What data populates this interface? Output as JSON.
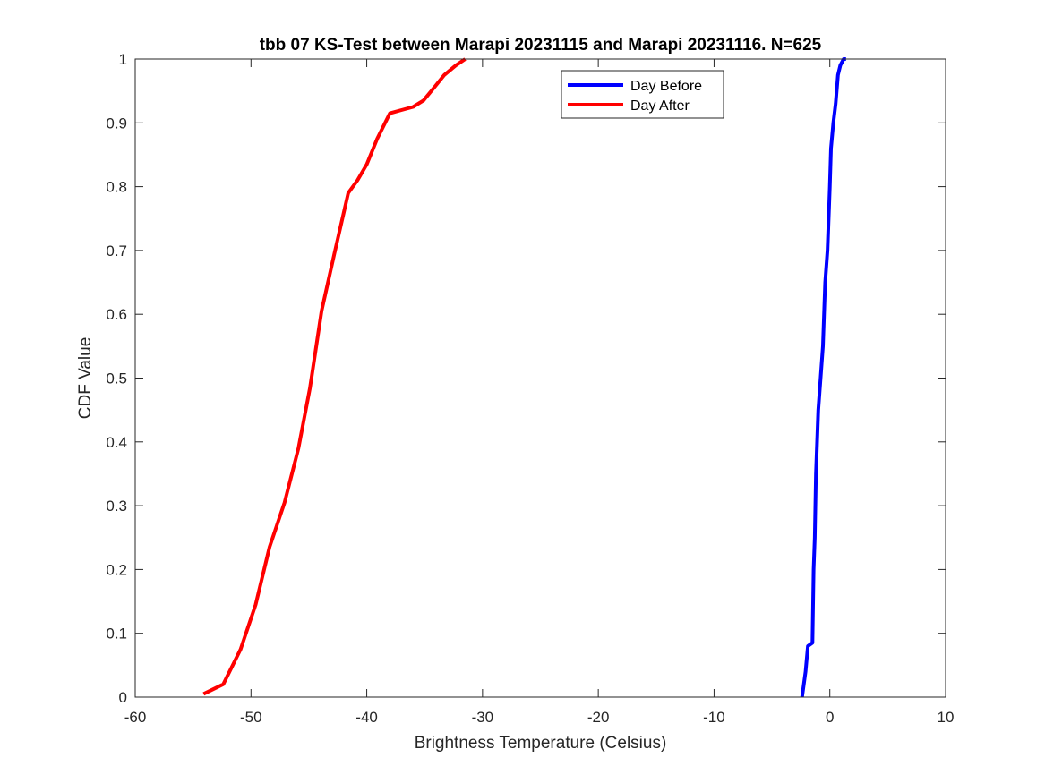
{
  "chart_data": {
    "type": "line",
    "title": "tbb 07 KS-Test between Marapi 20231115 and Marapi 20231116. N=625",
    "xlabel": "Brightness Temperature (Celsius)",
    "ylabel": "CDF Value",
    "xlim": [
      -60,
      10
    ],
    "ylim": [
      0,
      1
    ],
    "xticks": [
      -60,
      -50,
      -40,
      -30,
      -20,
      -10,
      0,
      10
    ],
    "xtick_labels": [
      "-60",
      "-50",
      "-40",
      "-30",
      "-20",
      "-10",
      "0",
      "10"
    ],
    "yticks": [
      0,
      0.1,
      0.2,
      0.3,
      0.4,
      0.5,
      0.6,
      0.7,
      0.8,
      0.9,
      1
    ],
    "ytick_labels": [
      "0",
      "0.1",
      "0.2",
      "0.3",
      "0.4",
      "0.5",
      "0.6",
      "0.7",
      "0.8",
      "0.9",
      "1"
    ],
    "grid": false,
    "legend_position": "top-center",
    "series": [
      {
        "name": "Day Before",
        "color": "#0000ff",
        "x": [
          -2.4,
          -2.1,
          -1.9,
          -1.5,
          -1.4,
          -1.3,
          -1.2,
          -1.0,
          -0.8,
          -0.6,
          -0.4,
          -0.2,
          0.0,
          0.1,
          0.3,
          0.5,
          0.7,
          0.9,
          1.2,
          1.4
        ],
        "y": [
          0.0,
          0.04,
          0.08,
          0.085,
          0.2,
          0.25,
          0.35,
          0.45,
          0.5,
          0.55,
          0.65,
          0.7,
          0.8,
          0.86,
          0.9,
          0.93,
          0.975,
          0.99,
          1.0,
          1.0
        ]
      },
      {
        "name": "Day After",
        "color": "#ff0000",
        "x": [
          -54.1,
          -52.4,
          -50.9,
          -49.6,
          -48.4,
          -47.1,
          -45.9,
          -44.9,
          -43.9,
          -42.8,
          -41.6,
          -40.8,
          -40.0,
          -39.1,
          -38.0,
          -37.0,
          -36.0,
          -35.1,
          -34.2,
          -33.3,
          -32.3,
          -31.5
        ],
        "y": [
          0.005,
          0.02,
          0.075,
          0.145,
          0.235,
          0.305,
          0.39,
          0.485,
          0.605,
          0.695,
          0.79,
          0.81,
          0.835,
          0.875,
          0.915,
          0.92,
          0.925,
          0.935,
          0.955,
          0.975,
          0.99,
          1.0
        ]
      }
    ]
  }
}
